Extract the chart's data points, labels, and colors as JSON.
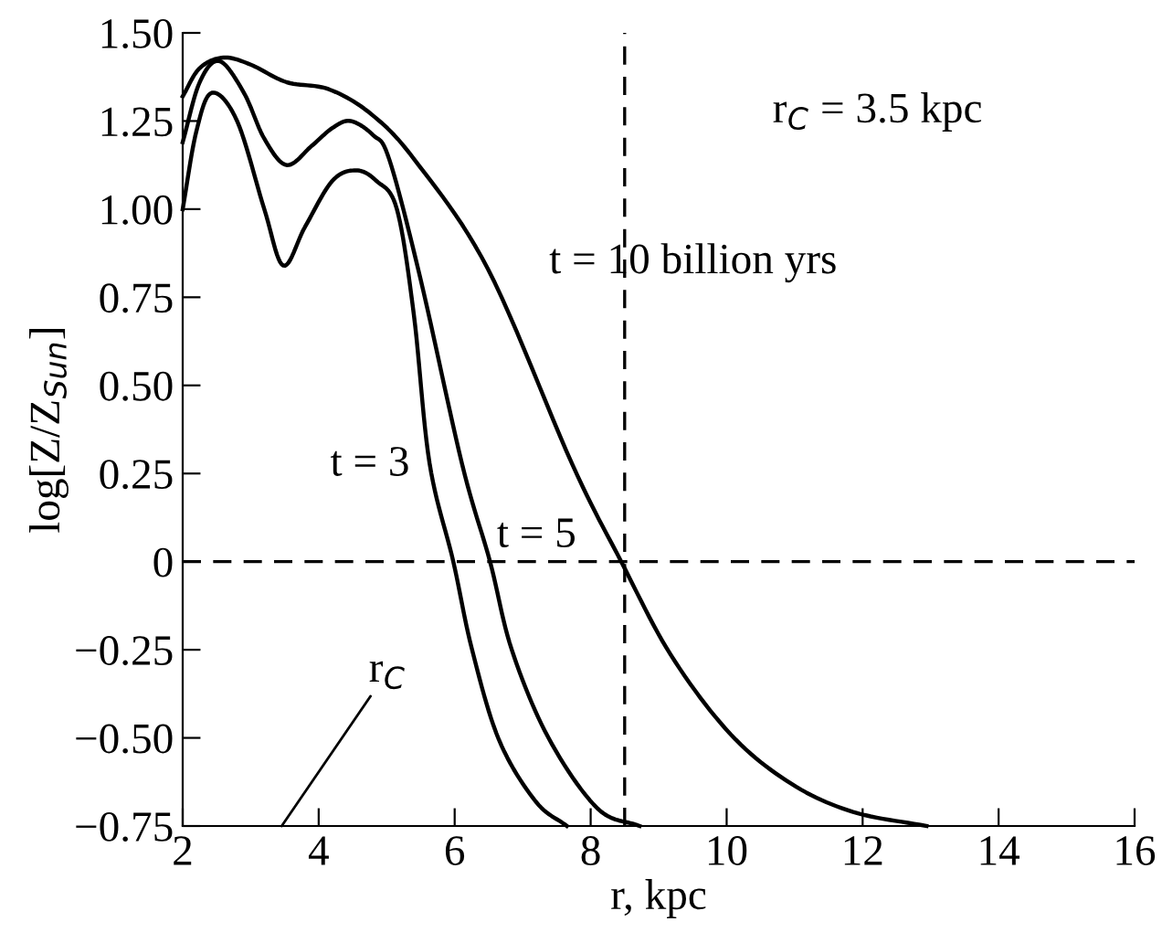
{
  "chart_data": {
    "type": "line",
    "xlabel": "r, kpc",
    "ylabel": "log[Z/Z$_{Sun}$]",
    "xlim": [
      2,
      16
    ],
    "xticks": [
      2,
      4,
      6,
      8,
      10,
      12,
      14,
      16
    ],
    "ylim": [
      -0.75,
      1.5
    ],
    "yticks": [
      {
        "value": -0.75,
        "label": "−0.75"
      },
      {
        "value": -0.5,
        "label": "−0.50"
      },
      {
        "value": -0.25,
        "label": "−0.25"
      },
      0,
      {
        "value": 0.25,
        "label": "0.25"
      },
      {
        "value": 0.5,
        "label": "0.50"
      },
      {
        "value": 0.75,
        "label": "0.75"
      },
      {
        "value": 1.0,
        "label": "1.00"
      },
      {
        "value": 1.25,
        "label": "1.25"
      },
      {
        "value": 1.5,
        "label": "1.50"
      }
    ],
    "grid": false,
    "legend": false,
    "marker": "none",
    "line_style": "solid",
    "series": [
      {
        "color": "#000000",
        "x": [
          2.0,
          2.2,
          2.43,
          2.8,
          3.2,
          3.48,
          3.8,
          4.2,
          4.55,
          4.85,
          5.15,
          5.4,
          5.63,
          5.98,
          6.25,
          6.65,
          7.19,
          7.65
        ],
        "values": [
          1.0,
          1.22,
          1.33,
          1.25,
          1.0,
          0.84,
          0.95,
          1.08,
          1.11,
          1.08,
          1.0,
          0.7,
          0.28,
          0.0,
          -0.245,
          -0.505,
          -0.68,
          -0.75
        ]
      },
      {
        "color": "#000000",
        "x": [
          2.0,
          2.25,
          2.54,
          2.9,
          3.2,
          3.53,
          3.9,
          4.2,
          4.47,
          4.8,
          5.04,
          5.5,
          6.11,
          6.52,
          6.84,
          7.38,
          8.1,
          8.72
        ],
        "values": [
          1.19,
          1.36,
          1.42,
          1.33,
          1.2,
          1.125,
          1.18,
          1.23,
          1.25,
          1.21,
          1.14,
          0.8,
          0.276,
          0.0,
          -0.25,
          -0.5,
          -0.7,
          -0.75
        ]
      },
      {
        "color": "#000000",
        "x": [
          2.0,
          2.25,
          2.6,
          3.0,
          3.53,
          4.15,
          4.77,
          5.41,
          6.49,
          7.73,
          8.45,
          9.18,
          10.06,
          10.95,
          11.86,
          12.94
        ],
        "values": [
          1.32,
          1.4,
          1.43,
          1.41,
          1.36,
          1.34,
          1.27,
          1.14,
          0.83,
          0.276,
          0.0,
          -0.265,
          -0.49,
          -0.63,
          -0.71,
          -0.75
        ]
      }
    ],
    "ref_lines": [
      {
        "axis": "x",
        "value": 8.5,
        "line_style": "dashed",
        "color": "#000000"
      },
      {
        "axis": "y",
        "value": 0,
        "line_style": "dashed",
        "color": "#000000"
      }
    ],
    "annotations": [
      "r$_{C}$ = 3.5 kpc",
      "t = 10 billion yrs",
      "t = 3",
      "t = 5",
      "r$_{C}$"
    ]
  }
}
